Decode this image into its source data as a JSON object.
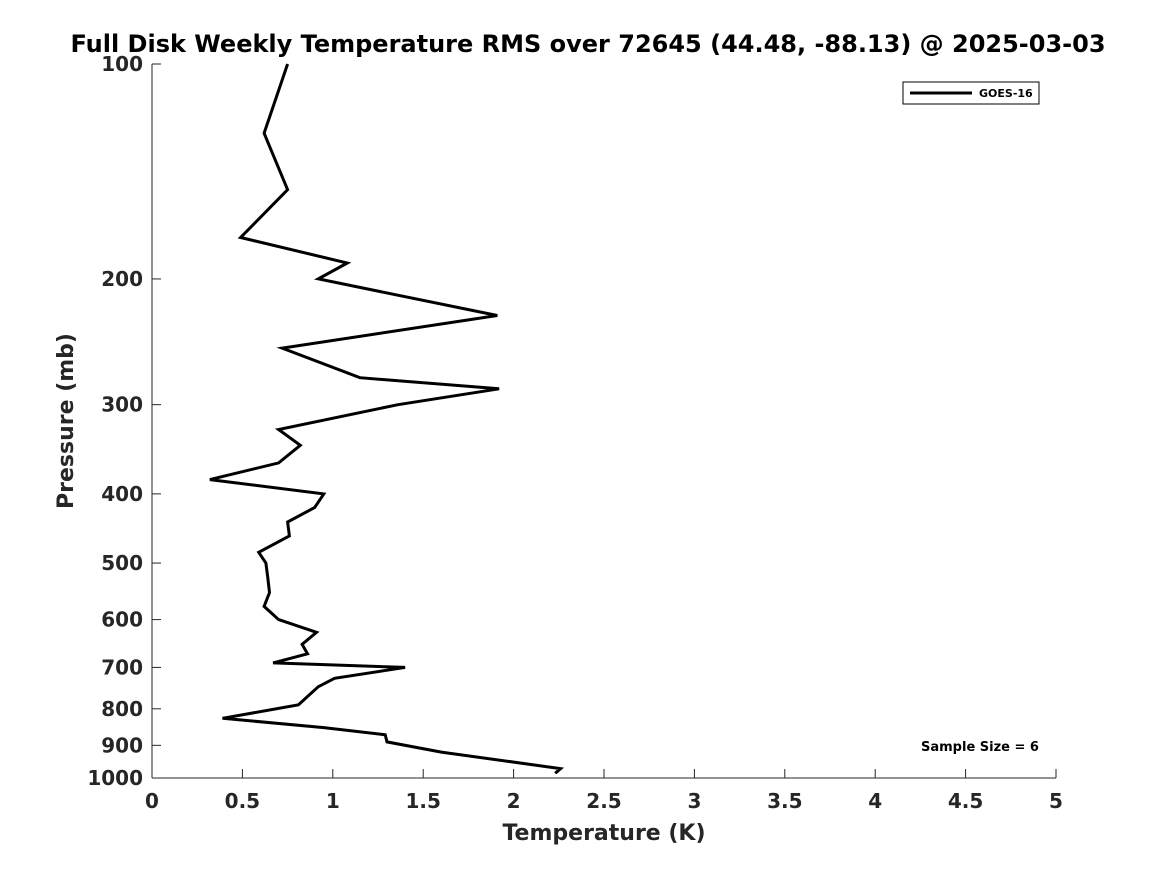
{
  "chart_data": {
    "type": "line",
    "title": "Full Disk Weekly Temperature RMS over 72645 (44.48, -88.13) @ 2025-03-03",
    "xlabel": "Temperature (K)",
    "ylabel": "Pressure (mb)",
    "xlim": [
      0,
      5
    ],
    "ylim": [
      100,
      1000
    ],
    "yscale": "log",
    "y_reversed": true,
    "x_ticks": [
      0,
      0.5,
      1,
      1.5,
      2,
      2.5,
      3,
      3.5,
      4,
      4.5,
      5
    ],
    "x_tick_labels": [
      "0",
      "0.5",
      "1",
      "1.5",
      "2",
      "2.5",
      "3",
      "3.5",
      "4",
      "4.5",
      "5"
    ],
    "y_ticks": [
      100,
      200,
      300,
      400,
      500,
      600,
      700,
      800,
      900,
      1000
    ],
    "y_tick_labels": [
      "100",
      "200",
      "300",
      "400",
      "500",
      "600",
      "700",
      "800",
      "900",
      "1000"
    ],
    "grid": false,
    "legend_position": "top-right",
    "annotation": "Sample Size = 6",
    "series": [
      {
        "name": "GOES-16",
        "color": "#000000",
        "points": [
          [
            0.75,
            100
          ],
          [
            0.62,
            125
          ],
          [
            0.75,
            150
          ],
          [
            0.49,
            175
          ],
          [
            1.08,
            190
          ],
          [
            0.92,
            200
          ],
          [
            1.91,
            225
          ],
          [
            0.72,
            250
          ],
          [
            1.15,
            275
          ],
          [
            1.92,
            285
          ],
          [
            1.36,
            300
          ],
          [
            0.7,
            325
          ],
          [
            0.82,
            342
          ],
          [
            0.7,
            362
          ],
          [
            0.32,
            382
          ],
          [
            0.95,
            400
          ],
          [
            0.9,
            418
          ],
          [
            0.75,
            438
          ],
          [
            0.76,
            458
          ],
          [
            0.59,
            483
          ],
          [
            0.63,
            500
          ],
          [
            0.64,
            523
          ],
          [
            0.65,
            550
          ],
          [
            0.62,
            575
          ],
          [
            0.7,
            600
          ],
          [
            0.91,
            625
          ],
          [
            0.83,
            650
          ],
          [
            0.86,
            670
          ],
          [
            0.67,
            690
          ],
          [
            1.4,
            700
          ],
          [
            1.01,
            725
          ],
          [
            0.92,
            745
          ],
          [
            0.87,
            765
          ],
          [
            0.81,
            790
          ],
          [
            0.39,
            825
          ],
          [
            0.95,
            850
          ],
          [
            1.29,
            870
          ],
          [
            1.3,
            890
          ],
          [
            1.6,
            920
          ],
          [
            2.26,
            970
          ],
          [
            2.23,
            985
          ]
        ]
      }
    ]
  }
}
